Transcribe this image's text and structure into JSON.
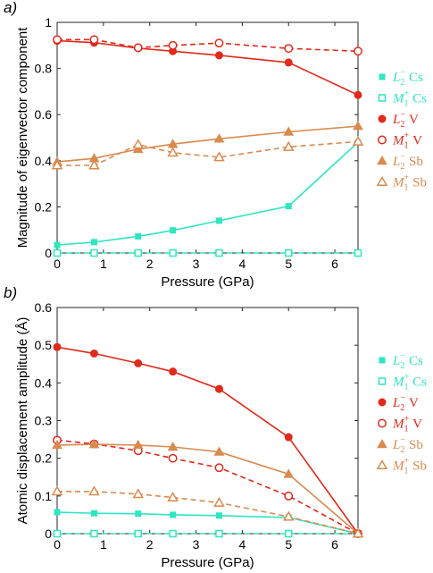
{
  "panels": [
    {
      "label": "a)",
      "chart_data": {
        "type": "line",
        "xlabel": "Pressure (GPa)",
        "ylabel": "Magnitude of eigenvector component",
        "xlim": [
          0,
          6.5
        ],
        "ylim": [
          0,
          1
        ],
        "xticks": [
          0,
          1,
          2,
          3,
          4,
          5,
          6
        ],
        "yticks": [
          0,
          0.2,
          0.4,
          0.6,
          0.8,
          1
        ],
        "ytick_labels": [
          "0",
          "0.2",
          "0.4",
          "0.6",
          "0.8",
          "1"
        ],
        "x": [
          0,
          0.8,
          1.75,
          2.5,
          3.5,
          5,
          6.5
        ],
        "grid": false,
        "legend_position": "outside-right",
        "series": [
          {
            "name": "L2- Cs",
            "symbol": "L",
            "sub": "2",
            "sup": "−",
            "element": "Cs",
            "color": "#2ee6c0",
            "marker": "square-filled",
            "dash": false,
            "values": [
              0.035,
              0.047,
              0.072,
              0.098,
              0.14,
              0.203,
              0.48
            ]
          },
          {
            "name": "M1+ Cs",
            "symbol": "M",
            "sub": "1",
            "sup": "+",
            "element": "Cs",
            "color": "#2ee6c0",
            "marker": "square-open",
            "dash": true,
            "values": [
              0.0,
              0.0,
              0.0,
              0.0,
              0.0,
              0.0,
              0.0
            ]
          },
          {
            "name": "L2- V",
            "symbol": "L",
            "sub": "2",
            "sup": "−",
            "element": "V",
            "color": "#e02a1b",
            "marker": "circle-filled",
            "dash": false,
            "values": [
              0.92,
              0.912,
              0.888,
              0.875,
              0.857,
              0.826,
              0.685
            ]
          },
          {
            "name": "M1+ V",
            "symbol": "M",
            "sub": "1",
            "sup": "+",
            "element": "V",
            "color": "#e02a1b",
            "marker": "circle-open",
            "dash": true,
            "values": [
              0.925,
              0.925,
              0.89,
              0.9,
              0.91,
              0.887,
              0.875
            ]
          },
          {
            "name": "L2- Sb",
            "symbol": "L",
            "sub": "2",
            "sup": "−",
            "element": "Sb",
            "color": "#d98a4f",
            "marker": "triangle-filled",
            "dash": false,
            "values": [
              0.395,
              0.41,
              0.45,
              0.472,
              0.495,
              0.525,
              0.55
            ]
          },
          {
            "name": "M1+ Sb",
            "symbol": "M",
            "sub": "1",
            "sup": "+",
            "element": "Sb",
            "color": "#d98a4f",
            "marker": "triangle-open",
            "dash": true,
            "values": [
              0.38,
              0.38,
              0.47,
              0.435,
              0.415,
              0.46,
              0.483
            ]
          }
        ]
      }
    },
    {
      "label": "b)",
      "chart_data": {
        "type": "line",
        "xlabel": "Pressure (GPa)",
        "ylabel": "Atomic displacement amplitude (Å)",
        "xlim": [
          0,
          6.5
        ],
        "ylim": [
          0,
          0.6
        ],
        "xticks": [
          0,
          1,
          2,
          3,
          4,
          5,
          6
        ],
        "yticks": [
          0,
          0.1,
          0.2,
          0.3,
          0.4,
          0.5,
          0.6
        ],
        "ytick_labels": [
          "0",
          "0.1",
          "0.2",
          "0.3",
          "0.4",
          "0.5",
          "0.6"
        ],
        "x": [
          0,
          0.8,
          1.75,
          2.5,
          3.5,
          5,
          6.5
        ],
        "grid": false,
        "legend_position": "outside-right",
        "series": [
          {
            "name": "L2- Cs",
            "symbol": "L",
            "sub": "2",
            "sup": "−",
            "element": "Cs",
            "color": "#2ee6c0",
            "marker": "square-filled",
            "dash": false,
            "values": [
              0.057,
              0.054,
              0.053,
              0.05,
              0.048,
              0.043,
              0.0
            ]
          },
          {
            "name": "M1+ Cs",
            "symbol": "M",
            "sub": "1",
            "sup": "+",
            "element": "Cs",
            "color": "#2ee6c0",
            "marker": "square-open",
            "dash": true,
            "values": [
              0.0,
              0.0,
              0.0,
              0.0,
              0.0,
              0.0,
              0.0
            ]
          },
          {
            "name": "L2- V",
            "symbol": "L",
            "sub": "2",
            "sup": "−",
            "element": "V",
            "color": "#e02a1b",
            "marker": "circle-filled",
            "dash": false,
            "values": [
              0.495,
              0.478,
              0.452,
              0.43,
              0.384,
              0.256,
              0.0
            ]
          },
          {
            "name": "M1+ V",
            "symbol": "M",
            "sub": "1",
            "sup": "+",
            "element": "V",
            "color": "#e02a1b",
            "marker": "circle-open",
            "dash": true,
            "values": [
              0.248,
              0.238,
              0.22,
              0.2,
              0.175,
              0.1,
              0.0
            ]
          },
          {
            "name": "L2- Sb",
            "symbol": "L",
            "sub": "2",
            "sup": "−",
            "element": "Sb",
            "color": "#d98a4f",
            "marker": "triangle-filled",
            "dash": false,
            "values": [
              0.235,
              0.237,
              0.235,
              0.23,
              0.217,
              0.158,
              0.0
            ]
          },
          {
            "name": "M1+ Sb",
            "symbol": "M",
            "sub": "1",
            "sup": "+",
            "element": "Sb",
            "color": "#d98a4f",
            "marker": "triangle-open",
            "dash": true,
            "values": [
              0.112,
              0.112,
              0.105,
              0.096,
              0.082,
              0.045,
              0.0
            ]
          }
        ]
      }
    }
  ]
}
